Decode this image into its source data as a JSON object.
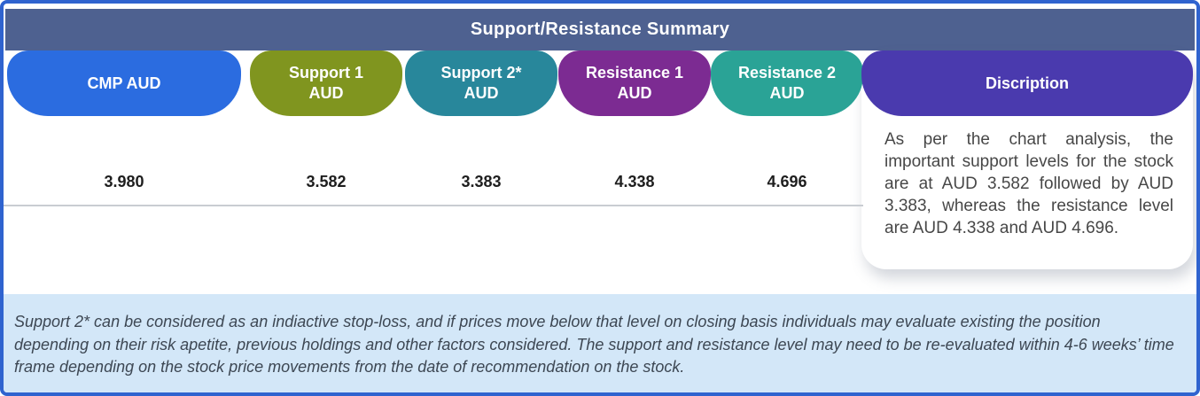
{
  "frame": {
    "border_color": "#2f63cf",
    "background": "#ffffff"
  },
  "header": {
    "title": "Support/Resistance Summary",
    "bar_color": "#4e6190",
    "text_color": "#ffffff"
  },
  "columns": [
    {
      "label": "CMP AUD",
      "value": "3.980",
      "color": "#2b6ce0"
    },
    {
      "label": "Support 1\nAUD",
      "value": "3.582",
      "color": "#80951f"
    },
    {
      "label": "Support 2*\nAUD",
      "value": "3.383",
      "color": "#28879b"
    },
    {
      "label": "Resistance 1\nAUD",
      "value": "4.338",
      "color": "#7c2b92"
    },
    {
      "label": "Resistance 2\nAUD",
      "value": "4.696",
      "color": "#2aa396"
    },
    {
      "label": "Discription",
      "color": "#4a3aae"
    }
  ],
  "description": {
    "text": "As per the chart analysis, the important support levels for the stock are at AUD 3.582 followed by AUD 3.383, whereas the resistance level are AUD 4.338 and AUD 4.696."
  },
  "footnote": {
    "text": "Support 2* can be considered as an indiactive stop-loss, and if prices move below that level on closing basis individuals may evaluate existing the position depending on their risk apetite, previous holdings and other factors considered. The support and resistance level may need to be re-evaluated within 4-6 weeks’ time frame depending on the stock price movements from  the date of recommendation on the stock.",
    "background": "#d3e7f8",
    "text_color": "#3d4753"
  }
}
